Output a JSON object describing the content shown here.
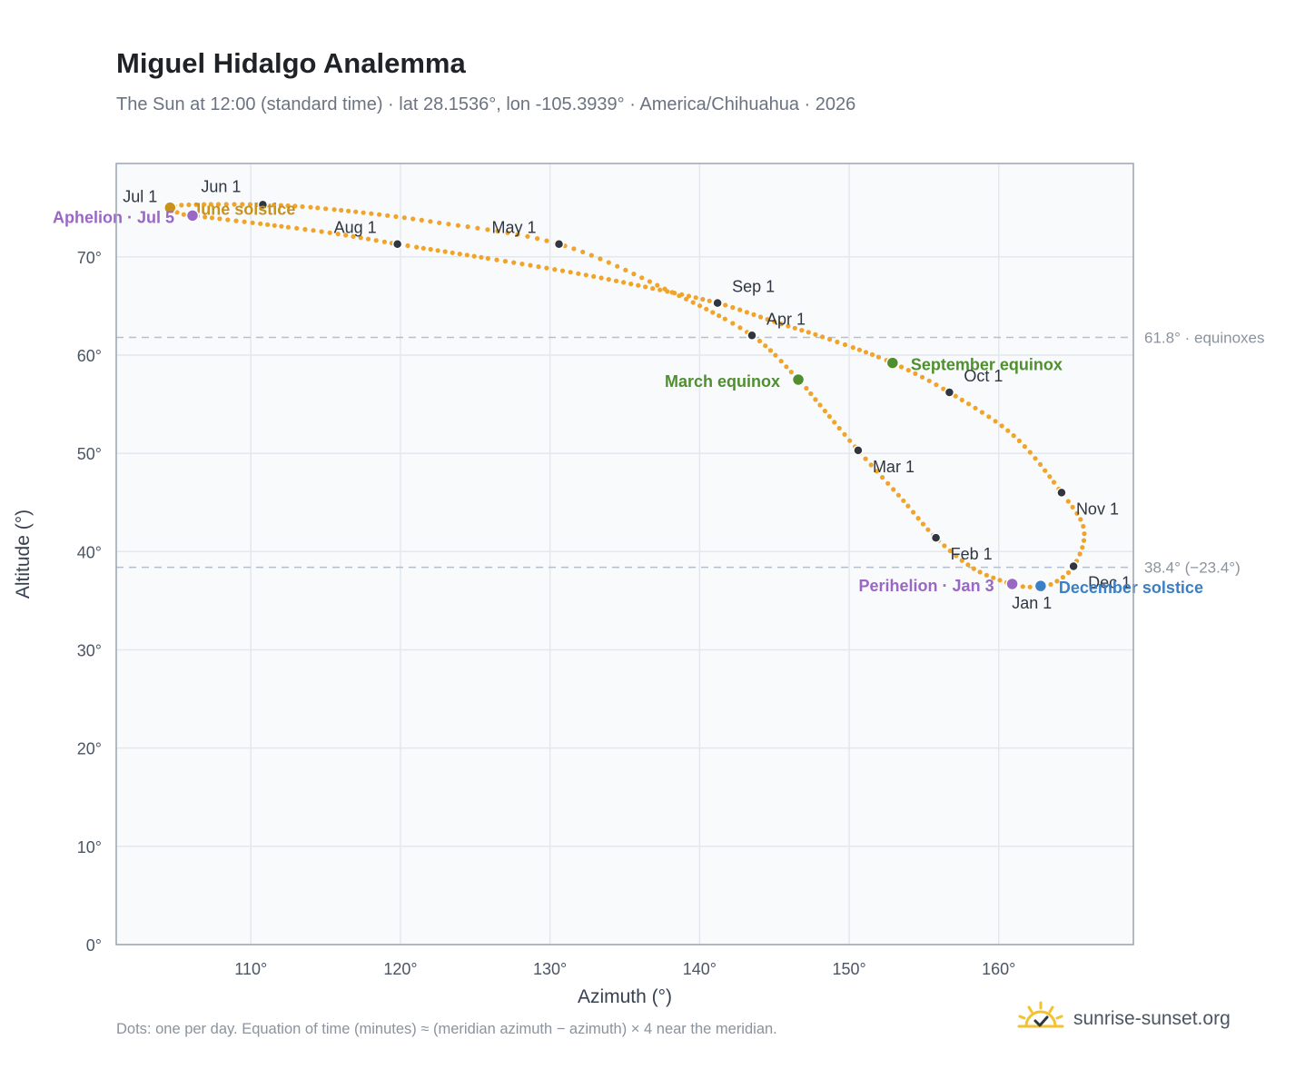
{
  "title": "Miguel Hidalgo Analemma",
  "subtitle": "The Sun at 12:00 (standard time) · lat 28.1536°, lon -105.3939° · America/Chihuahua · 2026",
  "footnote": "Dots: one per day. Equation of time (minutes) ≈ (meridian azimuth − azimuth) × 4 near the meridian.",
  "brand": {
    "text": "sunrise-sunset.org",
    "icon": "sun-icon"
  },
  "colors": {
    "curve": "#f0a42a",
    "month_marker": "#2f3640",
    "solstice_june": "#c9921a",
    "solstice_december": "#3b7fc4",
    "equinox": "#4f8f2f",
    "apsis": "#9a67c4",
    "plot_bg": "#f8fafc",
    "grid": "#e3e8ee",
    "reference_line": "#b6c0cc"
  },
  "chart_data": {
    "type": "scatter",
    "title": "Miguel Hidalgo Analemma",
    "xlabel": "Azimuth (°)",
    "ylabel": "Altitude (°)",
    "xlim": [
      101,
      169
    ],
    "ylim": [
      0,
      79.5
    ],
    "xticks": [
      110,
      120,
      130,
      140,
      150,
      160
    ],
    "xtick_labels": [
      "110°",
      "120°",
      "130°",
      "140°",
      "150°",
      "160°"
    ],
    "yticks": [
      0,
      10,
      20,
      30,
      40,
      50,
      60,
      70
    ],
    "ytick_labels": [
      "0°",
      "10°",
      "20°",
      "30°",
      "40°",
      "50°",
      "60°",
      "70°"
    ],
    "grid": true,
    "reference_lines": [
      {
        "y": 61.8,
        "label": "61.8° · equinoxes"
      },
      {
        "y": 38.4,
        "label": "38.4° (−23.4°)"
      }
    ],
    "month_markers": [
      {
        "label": "Jan 1",
        "x": 161.0,
        "y": 36.6
      },
      {
        "label": "Feb 1",
        "x": 155.8,
        "y": 41.4
      },
      {
        "label": "Mar 1",
        "x": 150.6,
        "y": 50.3
      },
      {
        "label": "Apr 1",
        "x": 143.5,
        "y": 62.0
      },
      {
        "label": "May 1",
        "x": 130.6,
        "y": 71.3
      },
      {
        "label": "Jun 1",
        "x": 110.8,
        "y": 75.3
      },
      {
        "label": "Jul 1",
        "x": 104.6,
        "y": 75.0
      },
      {
        "label": "Aug 1",
        "x": 119.8,
        "y": 71.3
      },
      {
        "label": "Sep 1",
        "x": 141.2,
        "y": 65.3
      },
      {
        "label": "Oct 1",
        "x": 156.7,
        "y": 56.2
      },
      {
        "label": "Nov 1",
        "x": 164.2,
        "y": 46.0
      },
      {
        "label": "Dec 1",
        "x": 165.0,
        "y": 38.5
      }
    ],
    "events": [
      {
        "label": "June solstice",
        "x": 104.6,
        "y": 75.0,
        "kind": "solstice_june"
      },
      {
        "label": "December solstice",
        "x": 162.8,
        "y": 36.5,
        "kind": "solstice_december"
      },
      {
        "label": "March equinox",
        "x": 146.6,
        "y": 57.5,
        "kind": "equinox"
      },
      {
        "label": "September equinox",
        "x": 152.9,
        "y": 59.2,
        "kind": "equinox"
      },
      {
        "label": "Aphelion · Jul 5",
        "x": 106.1,
        "y": 74.2,
        "kind": "apsis"
      },
      {
        "label": "Perihelion · Jan 3",
        "x": 160.9,
        "y": 36.7,
        "kind": "apsis"
      }
    ],
    "series": [
      {
        "points": [
          [
            161.0,
            36.6
          ],
          [
            158.4,
            38.2
          ],
          [
            155.8,
            41.4
          ],
          [
            153.5,
            45.4
          ],
          [
            150.6,
            50.3
          ],
          [
            148.0,
            55.0
          ],
          [
            146.6,
            57.5
          ],
          [
            143.5,
            62.0
          ],
          [
            138.0,
            66.5
          ],
          [
            130.6,
            71.3
          ],
          [
            122.0,
            73.6
          ],
          [
            115.0,
            74.9
          ],
          [
            110.8,
            75.3
          ],
          [
            106.0,
            75.3
          ],
          [
            104.6,
            75.0
          ],
          [
            105.3,
            74.4
          ],
          [
            106.1,
            74.2
          ],
          [
            111.0,
            73.3
          ],
          [
            115.5,
            72.4
          ],
          [
            119.8,
            71.3
          ],
          [
            126.0,
            69.8
          ],
          [
            131.5,
            68.4
          ],
          [
            136.5,
            66.9
          ],
          [
            141.2,
            65.3
          ],
          [
            145.0,
            63.4
          ],
          [
            148.7,
            61.6
          ],
          [
            152.9,
            59.2
          ],
          [
            156.7,
            56.2
          ],
          [
            161.0,
            51.8
          ],
          [
            164.2,
            46.0
          ],
          [
            165.7,
            42.2
          ],
          [
            165.0,
            38.5
          ],
          [
            163.4,
            36.6
          ],
          [
            162.0,
            36.4
          ],
          [
            161.0,
            36.6
          ]
        ]
      }
    ]
  }
}
